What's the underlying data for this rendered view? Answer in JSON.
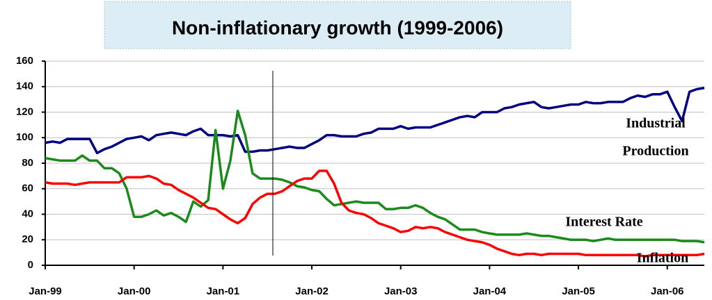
{
  "chart_data": {
    "type": "line",
    "title": "Non-inflationary growth (1999-2006)",
    "categories": [
      "Jan-99",
      null,
      null,
      null,
      null,
      null,
      null,
      null,
      null,
      null,
      null,
      null,
      "Jan-00",
      null,
      null,
      null,
      null,
      null,
      null,
      null,
      null,
      null,
      null,
      null,
      "Jan-01",
      null,
      null,
      null,
      null,
      null,
      null,
      null,
      null,
      null,
      null,
      null,
      "Jan-02",
      null,
      null,
      null,
      null,
      null,
      null,
      null,
      null,
      null,
      null,
      null,
      "Jan-03",
      null,
      null,
      null,
      null,
      null,
      null,
      null,
      null,
      null,
      null,
      null,
      "Jan-04",
      null,
      null,
      null,
      null,
      null,
      null,
      null,
      null,
      null,
      null,
      null,
      "Jan-05",
      null,
      null,
      null,
      null,
      null,
      null,
      null,
      null,
      null,
      null,
      null,
      "Jan-06",
      null,
      null,
      null,
      null,
      null
    ],
    "series": [
      {
        "name": "Industrial Production",
        "color": "#000080",
        "values": [
          96,
          97,
          96,
          99,
          99,
          99,
          99,
          88,
          91,
          93,
          96,
          99,
          100,
          101,
          98,
          102,
          103,
          104,
          103,
          102,
          105,
          107,
          102,
          102,
          102,
          101,
          102,
          89,
          89,
          90,
          90,
          91,
          92,
          93,
          92,
          92,
          95,
          98,
          102,
          102,
          101,
          101,
          101,
          103,
          104,
          107,
          107,
          107,
          109,
          107,
          108,
          108,
          108,
          110,
          112,
          114,
          116,
          117,
          116,
          120,
          120,
          120,
          123,
          124,
          126,
          127,
          128,
          124,
          123,
          124,
          125,
          126,
          126,
          128,
          127,
          127,
          128,
          128,
          128,
          131,
          133,
          132,
          134,
          134,
          136,
          124,
          113,
          136,
          138,
          139
        ]
      },
      {
        "name": "Interest Rate",
        "color": "#1a8a1a",
        "values": [
          84,
          83,
          82,
          82,
          82,
          86,
          82,
          82,
          76,
          76,
          72,
          60,
          38,
          38,
          40,
          43,
          39,
          41,
          38,
          34,
          50,
          46,
          51,
          106,
          60,
          82,
          121,
          102,
          72,
          68,
          68,
          68,
          67,
          65,
          62,
          61,
          59,
          58,
          52,
          47,
          48,
          49,
          50,
          49,
          49,
          49,
          44,
          44,
          45,
          45,
          47,
          45,
          41,
          38,
          36,
          32,
          28,
          28,
          28,
          26,
          25,
          24,
          24,
          24,
          24,
          25,
          24,
          23,
          23,
          22,
          21,
          20,
          20,
          20,
          19,
          20,
          21,
          20,
          20,
          20,
          20,
          20,
          20,
          20,
          20,
          20,
          19,
          19,
          19,
          18
        ]
      },
      {
        "name": "Inflation",
        "color": "#ff0000",
        "values": [
          65,
          64,
          64,
          64,
          63,
          64,
          65,
          65,
          65,
          65,
          65,
          69,
          69,
          69,
          70,
          68,
          64,
          63,
          59,
          56,
          53,
          49,
          45,
          44,
          40,
          36,
          33,
          37,
          48,
          53,
          56,
          56,
          58,
          62,
          66,
          68,
          68,
          74,
          74,
          64,
          49,
          43,
          41,
          40,
          37,
          33,
          31,
          29,
          26,
          27,
          30,
          29,
          30,
          29,
          26,
          24,
          22,
          20,
          19,
          18,
          16,
          13,
          11,
          9,
          8,
          9,
          9,
          8,
          9,
          9,
          9,
          9,
          9,
          8,
          8,
          8,
          8,
          8,
          8,
          8,
          8,
          7,
          8,
          8,
          8,
          8,
          8,
          8,
          8,
          9
        ]
      }
    ],
    "annotations": [
      "Industrial",
      "Production",
      "Interest Rate",
      "Inflation"
    ],
    "ylim": [
      0,
      160
    ],
    "yticks": [
      0,
      20,
      40,
      60,
      80,
      100,
      120,
      140,
      160
    ],
    "grid": true
  }
}
